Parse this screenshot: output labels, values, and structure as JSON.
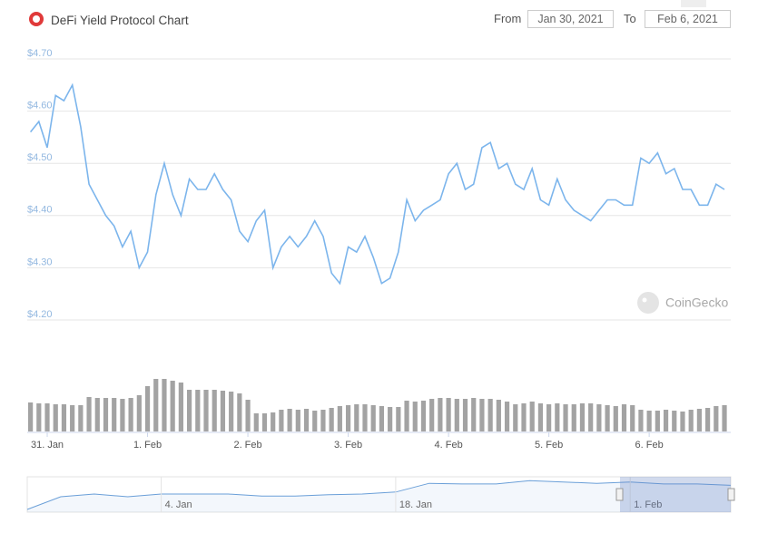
{
  "header": {
    "title": "DeFi Yield Protocol Chart",
    "from_label": "From",
    "from_date": "Jan 30, 2021",
    "to_label": "To",
    "to_date": "Feb 6, 2021"
  },
  "watermark": "CoinGecko",
  "chart_data": [
    {
      "type": "line",
      "color": "#7cb5ec",
      "grid": true,
      "ylim": [
        4.2,
        4.7
      ],
      "yticks": [
        {
          "value": 4.2,
          "label": "$4.20"
        },
        {
          "value": 4.3,
          "label": "$4.30"
        },
        {
          "value": 4.4,
          "label": "$4.40"
        },
        {
          "value": 4.5,
          "label": "$4.50"
        },
        {
          "value": 4.6,
          "label": "$4.60"
        },
        {
          "value": 4.7,
          "label": "$4.70"
        }
      ],
      "values": [
        4.56,
        4.58,
        4.53,
        4.63,
        4.62,
        4.65,
        4.57,
        4.46,
        4.43,
        4.4,
        4.38,
        4.34,
        4.37,
        4.3,
        4.33,
        4.44,
        4.5,
        4.44,
        4.4,
        4.47,
        4.45,
        4.45,
        4.48,
        4.45,
        4.43,
        4.37,
        4.35,
        4.39,
        4.41,
        4.3,
        4.34,
        4.36,
        4.34,
        4.36,
        4.39,
        4.36,
        4.29,
        4.27,
        4.34,
        4.33,
        4.36,
        4.32,
        4.27,
        4.28,
        4.33,
        4.43,
        4.39,
        4.41,
        4.42,
        4.43,
        4.48,
        4.5,
        4.45,
        4.46,
        4.53,
        4.54,
        4.49,
        4.5,
        4.46,
        4.45,
        4.49,
        4.43,
        4.42,
        4.47,
        4.43,
        4.41,
        4.4,
        4.39,
        4.41,
        4.43,
        4.43,
        4.42,
        4.42,
        4.51,
        4.5,
        4.52,
        4.48,
        4.49,
        4.45,
        4.45,
        4.42,
        4.42,
        4.46,
        4.45
      ]
    },
    {
      "type": "bar",
      "color": "#a3a3a3",
      "categories": [
        null,
        null,
        "31. Jan",
        null,
        null,
        null,
        null,
        null,
        null,
        null,
        null,
        null,
        null,
        null,
        "1. Feb",
        null,
        null,
        null,
        null,
        null,
        null,
        null,
        null,
        null,
        null,
        null,
        "2. Feb",
        null,
        null,
        null,
        null,
        null,
        null,
        null,
        null,
        null,
        null,
        null,
        "3. Feb",
        null,
        null,
        null,
        null,
        null,
        null,
        null,
        null,
        null,
        null,
        null,
        "4. Feb",
        null,
        null,
        null,
        null,
        null,
        null,
        null,
        null,
        null,
        null,
        null,
        "5. Feb",
        null,
        null,
        null,
        null,
        null,
        null,
        null,
        null,
        null,
        null,
        null,
        "6. Feb",
        null,
        null,
        null,
        null,
        null,
        null,
        null,
        null,
        null
      ],
      "values": [
        32,
        31,
        31,
        30,
        30,
        29,
        29,
        38,
        37,
        37,
        37,
        36,
        37,
        40,
        50,
        58,
        58,
        56,
        54,
        46,
        46,
        46,
        46,
        45,
        44,
        42,
        35,
        20,
        20,
        21,
        24,
        25,
        24,
        25,
        23,
        24,
        26,
        28,
        29,
        30,
        30,
        29,
        28,
        27,
        27,
        34,
        33,
        34,
        36,
        37,
        37,
        36,
        36,
        37,
        36,
        36,
        35,
        33,
        30,
        31,
        33,
        31,
        30,
        31,
        30,
        30,
        31,
        31,
        30,
        29,
        28,
        30,
        29,
        24,
        23,
        23,
        24,
        23,
        22,
        24,
        25,
        26,
        28,
        29
      ]
    },
    {
      "type": "area",
      "color": "#6a9fd8",
      "categories": [
        null,
        null,
        null,
        null,
        "4. Jan",
        null,
        null,
        null,
        null,
        null,
        null,
        "18. Jan",
        null,
        null,
        null,
        null,
        null,
        null,
        "1. Feb",
        null,
        null,
        null
      ],
      "values": [
        0.4,
        2.3,
        2.7,
        2.3,
        2.7,
        2.7,
        2.7,
        2.4,
        2.4,
        2.6,
        2.7,
        3.0,
        4.3,
        4.2,
        4.2,
        4.7,
        4.5,
        4.3,
        4.5,
        4.2,
        4.2,
        4.0
      ]
    }
  ]
}
